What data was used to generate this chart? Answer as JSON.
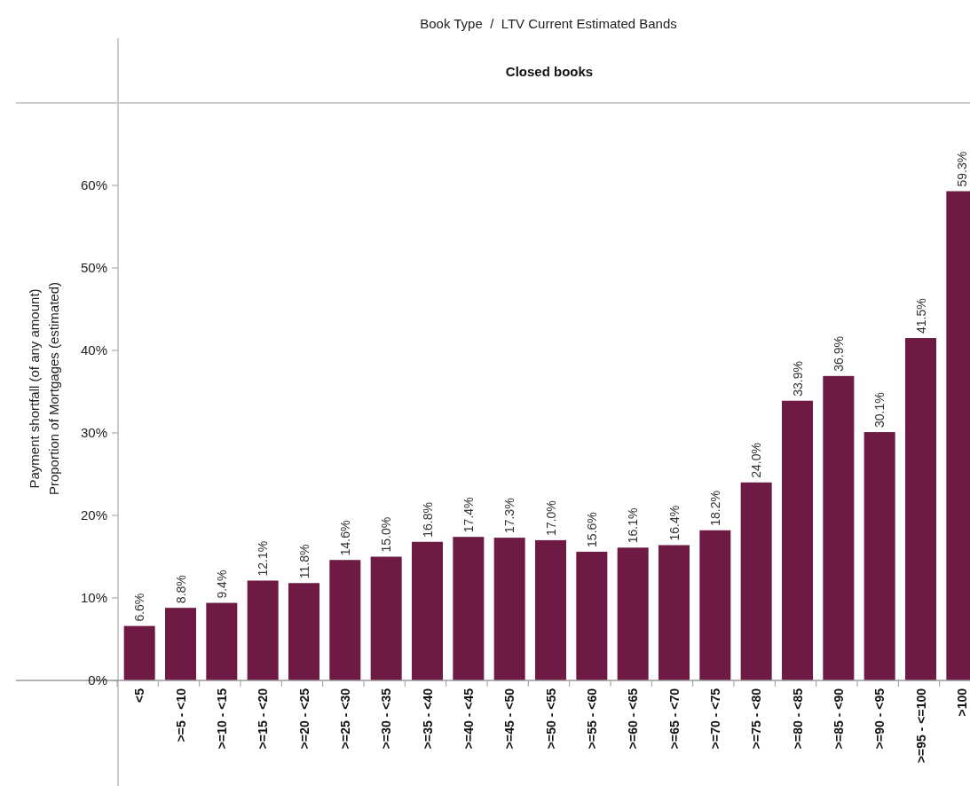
{
  "chart_data": {
    "type": "bar",
    "title": "Book Type  /  LTV Current Estimated Bands",
    "subtitle": "Closed books",
    "ylabel": "Payment shortfall (of any amount)\nProportion of Mortgages (estimated)",
    "categories": [
      "<5",
      ">=5 - <10",
      ">=10 - <15",
      ">=15 - <20",
      ">=20 - <25",
      ">=25 - <30",
      ">=30 - <35",
      ">=35 - <40",
      ">=40 - <45",
      ">=45 - <50",
      ">=50 - <55",
      ">=55 - <60",
      ">=60 - <65",
      ">=65 - <70",
      ">=70 - <75",
      ">=75 - <80",
      ">=80 - <85",
      ">=85 - <90",
      ">=90 - <95",
      ">=95 - <=100",
      ">100"
    ],
    "values": [
      6.6,
      8.8,
      9.4,
      12.1,
      11.8,
      14.6,
      15.0,
      16.8,
      17.4,
      17.3,
      17.0,
      15.6,
      16.1,
      16.4,
      18.2,
      24.0,
      33.9,
      36.9,
      30.1,
      41.5,
      59.3
    ],
    "value_labels": [
      "6.6%",
      "8.8%",
      "9.4%",
      "12.1%",
      "11.8%",
      "14.6%",
      "15.0%",
      "16.8%",
      "17.4%",
      "17.3%",
      "17.0%",
      "15.6%",
      "16.1%",
      "16.4%",
      "18.2%",
      "24.0%",
      "33.9%",
      "36.9%",
      "30.1%",
      "41.5%",
      "59.3%"
    ],
    "color": "#6e1a45",
    "ylim": [
      0,
      70
    ],
    "yticks": [
      {
        "value": 0,
        "label": "0%"
      },
      {
        "value": 10,
        "label": "10%"
      },
      {
        "value": 20,
        "label": "20%"
      },
      {
        "value": 30,
        "label": "30%"
      },
      {
        "value": 40,
        "label": "40%"
      },
      {
        "value": 50,
        "label": "50%"
      },
      {
        "value": 60,
        "label": "60%"
      }
    ],
    "grid": false
  }
}
